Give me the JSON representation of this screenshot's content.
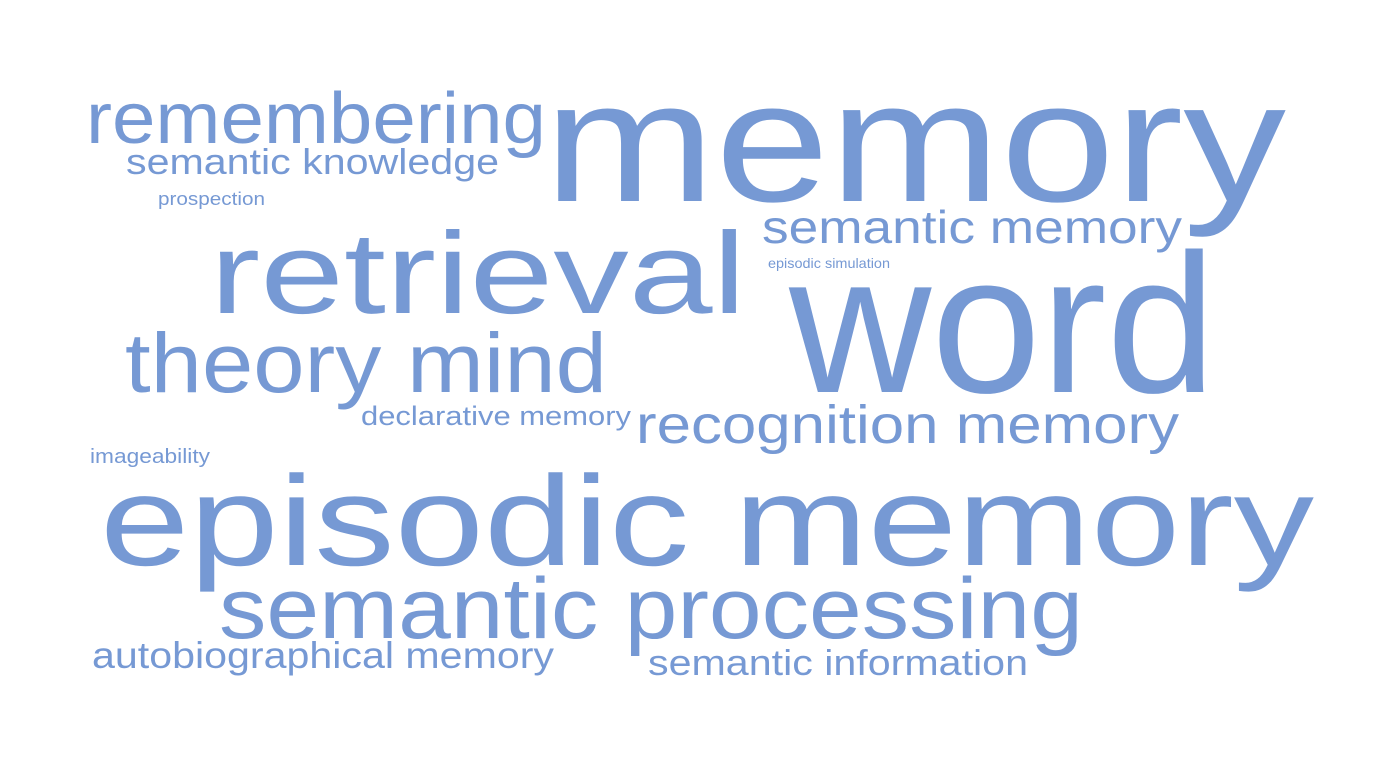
{
  "word_cloud": {
    "color": "#7699d4",
    "words": [
      {
        "text": "memory"
      },
      {
        "text": "word"
      },
      {
        "text": "episodic memory"
      },
      {
        "text": "retrieval"
      },
      {
        "text": "remembering"
      },
      {
        "text": "semantic processing"
      },
      {
        "text": "theory mind"
      },
      {
        "text": "recognition memory"
      },
      {
        "text": "semantic memory"
      },
      {
        "text": "semantic knowledge"
      },
      {
        "text": "autobiographical memory"
      },
      {
        "text": "semantic information"
      },
      {
        "text": "declarative memory"
      },
      {
        "text": "imageability"
      },
      {
        "text": "prospection"
      },
      {
        "text": "episodic simulation"
      }
    ]
  }
}
